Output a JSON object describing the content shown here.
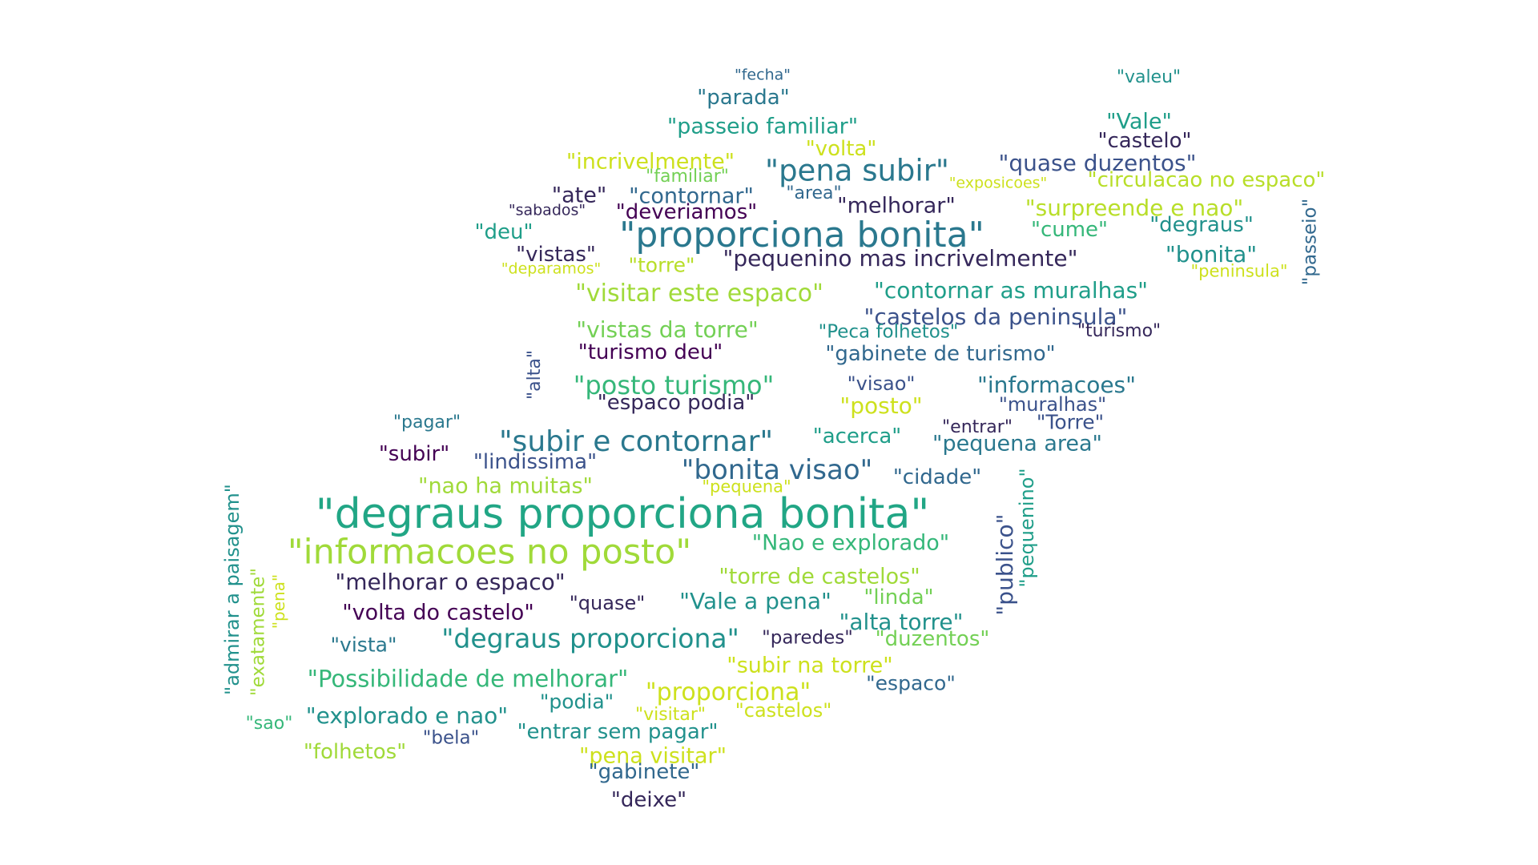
{
  "word_cloud": {
    "words": [
      {
        "text": "\"fecha\"",
        "color": "#31688e"
      },
      {
        "text": "\"valeu\"",
        "color": "#21918c"
      },
      {
        "text": "\"parada\"",
        "color": "#2a788e"
      },
      {
        "text": "\"passeio familiar\"",
        "color": "#1f9e89"
      },
      {
        "text": "\"Vale\"",
        "color": "#1f9e89"
      },
      {
        "text": "\"castelo\"",
        "color": "#35275a"
      },
      {
        "text": "\"volta\"",
        "color": "#cde11d"
      },
      {
        "text": "\"incrivelmente\"",
        "color": "#cde11d"
      },
      {
        "text": "\"pena subir\"",
        "color": "#2a788e"
      },
      {
        "text": "\"quase duzentos\"",
        "color": "#3b528b"
      },
      {
        "text": "\"familiar\"",
        "color": "#73d055"
      },
      {
        "text": "\"exposicoes\"",
        "color": "#cde11d"
      },
      {
        "text": "\"circulacao no espaco\"",
        "color": "#b8de29"
      },
      {
        "text": "\"ate\"",
        "color": "#35275a"
      },
      {
        "text": "\"contornar\"",
        "color": "#31688e"
      },
      {
        "text": "\"area\"",
        "color": "#31688e"
      },
      {
        "text": "\"sabados\"",
        "color": "#35275a"
      },
      {
        "text": "\"deveriamos\"",
        "color": "#440154"
      },
      {
        "text": "\"melhorar\"",
        "color": "#35275a"
      },
      {
        "text": "\"surpreende e nao\"",
        "color": "#b8de29"
      },
      {
        "text": "\"passeio\"",
        "color": "#31688e"
      },
      {
        "text": "\"deu\"",
        "color": "#1f9e89"
      },
      {
        "text": "\"proporciona bonita\"",
        "color": "#2a788e"
      },
      {
        "text": "\"cume\"",
        "color": "#35b779"
      },
      {
        "text": "\"degraus\"",
        "color": "#21918c"
      },
      {
        "text": "\"vistas\"",
        "color": "#35275a"
      },
      {
        "text": "\"deparamos\"",
        "color": "#cde11d"
      },
      {
        "text": "\"torre\"",
        "color": "#b8de29"
      },
      {
        "text": "\"pequenino mas incrivelmente\"",
        "color": "#35275a"
      },
      {
        "text": "\"bonita\"",
        "color": "#21918c"
      },
      {
        "text": "\"peninsula\"",
        "color": "#cde11d"
      },
      {
        "text": "\"visitar este espaco\"",
        "color": "#a0da39"
      },
      {
        "text": "\"contornar as muralhas\"",
        "color": "#1f9e89"
      },
      {
        "text": "\"castelos da peninsula\"",
        "color": "#3b528b"
      },
      {
        "text": "\"vistas da torre\"",
        "color": "#73d055"
      },
      {
        "text": "\"Peca folhetos\"",
        "color": "#21918c"
      },
      {
        "text": "\"turismo\"",
        "color": "#35275a"
      },
      {
        "text": "\"alta\"",
        "color": "#3b528b"
      },
      {
        "text": "\"turismo deu\"",
        "color": "#440154"
      },
      {
        "text": "\"gabinete de turismo\"",
        "color": "#31688e"
      },
      {
        "text": "\"posto turismo\"",
        "color": "#35b779"
      },
      {
        "text": "\"visao\"",
        "color": "#3b528b"
      },
      {
        "text": "\"informacoes\"",
        "color": "#2a788e"
      },
      {
        "text": "\"espaco podia\"",
        "color": "#35275a"
      },
      {
        "text": "\"posto\"",
        "color": "#cde11d"
      },
      {
        "text": "\"muralhas\"",
        "color": "#3b528b"
      },
      {
        "text": "\"pagar\"",
        "color": "#2a788e"
      },
      {
        "text": "\"entrar\"",
        "color": "#35275a"
      },
      {
        "text": "\"Torre\"",
        "color": "#3b528b"
      },
      {
        "text": "\"subir e contornar\"",
        "color": "#2a788e"
      },
      {
        "text": "\"acerca\"",
        "color": "#1f9e89"
      },
      {
        "text": "\"pequena area\"",
        "color": "#2a788e"
      },
      {
        "text": "\"subir\"",
        "color": "#440154"
      },
      {
        "text": "\"lindissima\"",
        "color": "#3b528b"
      },
      {
        "text": "\"bonita visao\"",
        "color": "#31688e"
      },
      {
        "text": "\"cidade\"",
        "color": "#31688e"
      },
      {
        "text": "\"nao ha muitas\"",
        "color": "#a0da39"
      },
      {
        "text": "\"pequena\"",
        "color": "#cde11d"
      },
      {
        "text": "\"admirar a paisagem\"",
        "color": "#21918c"
      },
      {
        "text": "\"degraus proporciona bonita\"",
        "color": "#21a685"
      },
      {
        "text": "\"pequenino\"",
        "color": "#1f9e89"
      },
      {
        "text": "\"publico\"",
        "color": "#3b528b"
      },
      {
        "text": "\"informacoes no posto\"",
        "color": "#a0da39"
      },
      {
        "text": "\"Nao e explorado\"",
        "color": "#35b779"
      },
      {
        "text": "\"exatamente\"",
        "color": "#a0da39"
      },
      {
        "text": "\"pena\"",
        "color": "#cde11d"
      },
      {
        "text": "\"melhorar o espaco\"",
        "color": "#35275a"
      },
      {
        "text": "\"torre de castelos\"",
        "color": "#a0da39"
      },
      {
        "text": "\"volta do castelo\"",
        "color": "#440154"
      },
      {
        "text": "\"quase\"",
        "color": "#35275a"
      },
      {
        "text": "\"Vale a pena\"",
        "color": "#21918c"
      },
      {
        "text": "\"linda\"",
        "color": "#73d055"
      },
      {
        "text": "\"alta torre\"",
        "color": "#21918c"
      },
      {
        "text": "\"vista\"",
        "color": "#2a788e"
      },
      {
        "text": "\"degraus proporciona\"",
        "color": "#21918c"
      },
      {
        "text": "\"paredes\"",
        "color": "#35275a"
      },
      {
        "text": "\"duzentos\"",
        "color": "#73d055"
      },
      {
        "text": "\"subir na torre\"",
        "color": "#cde11d"
      },
      {
        "text": "\"Possibilidade de melhorar\"",
        "color": "#35b779"
      },
      {
        "text": "\"espaco\"",
        "color": "#31688e"
      },
      {
        "text": "\"proporciona\"",
        "color": "#cde11d"
      },
      {
        "text": "\"podia\"",
        "color": "#21918c"
      },
      {
        "text": "\"explorado e nao\"",
        "color": "#21918c"
      },
      {
        "text": "\"visitar\"",
        "color": "#cde11d"
      },
      {
        "text": "\"castelos\"",
        "color": "#cde11d"
      },
      {
        "text": "\"sao\"",
        "color": "#35b779"
      },
      {
        "text": "\"bela\"",
        "color": "#3b528b"
      },
      {
        "text": "\"entrar sem pagar\"",
        "color": "#21918c"
      },
      {
        "text": "\"folhetos\"",
        "color": "#a0da39"
      },
      {
        "text": "\"pena visitar\"",
        "color": "#cde11d"
      },
      {
        "text": "\"gabinete\"",
        "color": "#31688e"
      },
      {
        "text": "\"deixe\"",
        "color": "#35275a"
      }
    ]
  }
}
